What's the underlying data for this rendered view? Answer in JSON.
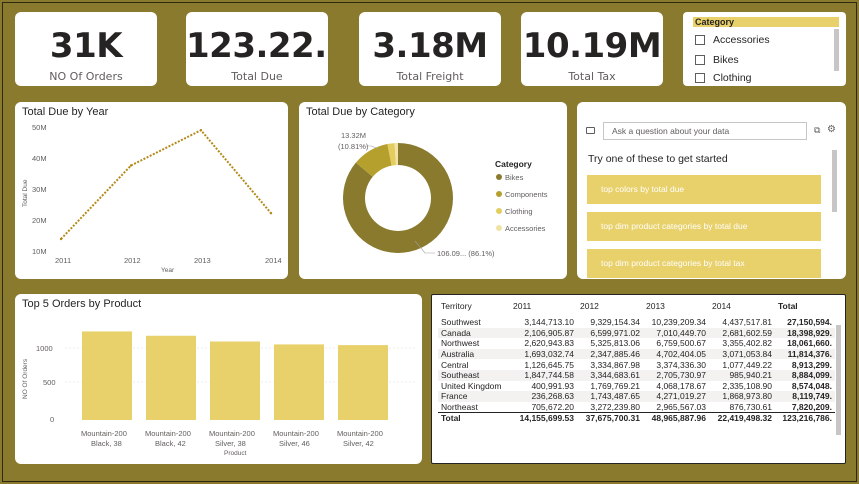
{
  "kpis": [
    {
      "value": "31K",
      "label": "NO Of Orders"
    },
    {
      "value": "123.22...",
      "label": "Total Due"
    },
    {
      "value": "3.18M",
      "label": "Total Freight"
    },
    {
      "value": "10.19M",
      "label": "Total Tax"
    }
  ],
  "slicer": {
    "header": "Category",
    "items": [
      "Accessories",
      "Bikes",
      "Clothing"
    ]
  },
  "line_chart": {
    "title": "Total Due by Year",
    "ylabel": "Total Due",
    "xlabel": "Year",
    "yticks": [
      "50M",
      "40M",
      "30M",
      "20M",
      "10M"
    ],
    "xticks": [
      "2011",
      "2012",
      "2013",
      "2014"
    ]
  },
  "donut_chart": {
    "title": "Total Due by Category",
    "legend_title": "Category",
    "legend": [
      "Bikes",
      "Components",
      "Clothing",
      "Accessories"
    ],
    "label_top_1": "13.32M",
    "label_top_2": "(10.81%)",
    "label_bottom": "106.09... (86.1%)"
  },
  "qa": {
    "placeholder": "Ask a question about your data",
    "prompt": "Try one of these to get started",
    "suggestions": [
      "top colors by total due",
      "top dim product categories by total due",
      "top dim product categories by total tax"
    ]
  },
  "bar_chart": {
    "title": "Top 5 Orders by Product",
    "ylabel": "NO Of Orders",
    "xlabel": "Product",
    "yticks": [
      "1000",
      "500",
      "0"
    ],
    "labels": [
      [
        "Mountain-200",
        "Black, 38"
      ],
      [
        "Mountain-200",
        "Black, 42"
      ],
      [
        "Mountain-200",
        "Silver, 38"
      ],
      [
        "Mountain-200",
        "Silver, 46"
      ],
      [
        "Mountain-200",
        "Silver, 42"
      ]
    ]
  },
  "matrix": {
    "headers": [
      "Territory",
      "2011",
      "2012",
      "2013",
      "2014",
      "Total"
    ],
    "rows": [
      [
        "Southwest",
        "3,144,713.10",
        "9,329,154.34",
        "10,239,209.34",
        "4,437,517.81",
        "27,150,594."
      ],
      [
        "Canada",
        "2,106,905.87",
        "6,599,971.02",
        "7,010,449.70",
        "2,681,602.59",
        "18,398,929."
      ],
      [
        "Northwest",
        "2,620,943.83",
        "5,325,813.06",
        "6,759,500.67",
        "3,355,402.82",
        "18,061,660."
      ],
      [
        "Australia",
        "1,693,032.74",
        "2,347,885.46",
        "4,702,404.05",
        "3,071,053.84",
        "11,814,376."
      ],
      [
        "Central",
        "1,126,645.75",
        "3,334,867.98",
        "3,374,336.30",
        "1,077,449.22",
        "8,913,299."
      ],
      [
        "Southeast",
        "1,847,744.58",
        "3,344,683.61",
        "2,705,730.97",
        "985,940.21",
        "8,884,099."
      ],
      [
        "United Kingdom",
        "400,991.93",
        "1,769,769.21",
        "4,068,178.67",
        "2,335,108.90",
        "8,574,048."
      ],
      [
        "France",
        "236,268.63",
        "1,743,487.65",
        "4,271,019.27",
        "1,868,973.80",
        "8,119,749."
      ],
      [
        "Northeast",
        "705,672.20",
        "3,272,239.80",
        "2,965,567.03",
        "876,730.61",
        "7,820,209."
      ]
    ],
    "total": [
      "Total",
      "14,155,699.53",
      "37,675,700.31",
      "48,965,887.96",
      "22,419,498.32",
      "123,216,786."
    ]
  },
  "chart_data": [
    {
      "type": "line",
      "title": "Total Due by Year",
      "xlabel": "Year",
      "ylabel": "Total Due",
      "x": [
        "2011",
        "2012",
        "2013",
        "2014"
      ],
      "values": [
        14.16,
        37.68,
        48.97,
        22.42
      ],
      "unit": "M",
      "ylim": [
        10,
        50
      ],
      "color": "#b38a1a"
    },
    {
      "type": "pie",
      "title": "Total Due by Category",
      "categories": [
        "Bikes",
        "Components",
        "Clothing",
        "Accessories"
      ],
      "values": [
        106.09,
        13.32,
        2.6,
        1.21
      ],
      "unit": "M",
      "colors": [
        "#8a7a2e",
        "#b5a02e",
        "#e3cd5e",
        "#f1e3a6"
      ]
    },
    {
      "type": "bar",
      "title": "Top 5 Orders by Product",
      "xlabel": "Product",
      "ylabel": "NO Of Orders",
      "categories": [
        "Mountain-200 Black, 38",
        "Mountain-200 Black, 42",
        "Mountain-200 Silver, 38",
        "Mountain-200 Silver, 46",
        "Mountain-200 Silver, 42"
      ],
      "values": [
        1230,
        1170,
        1090,
        1050,
        1040
      ],
      "ylim": [
        0,
        1300
      ],
      "color": "#e8d06a"
    }
  ]
}
